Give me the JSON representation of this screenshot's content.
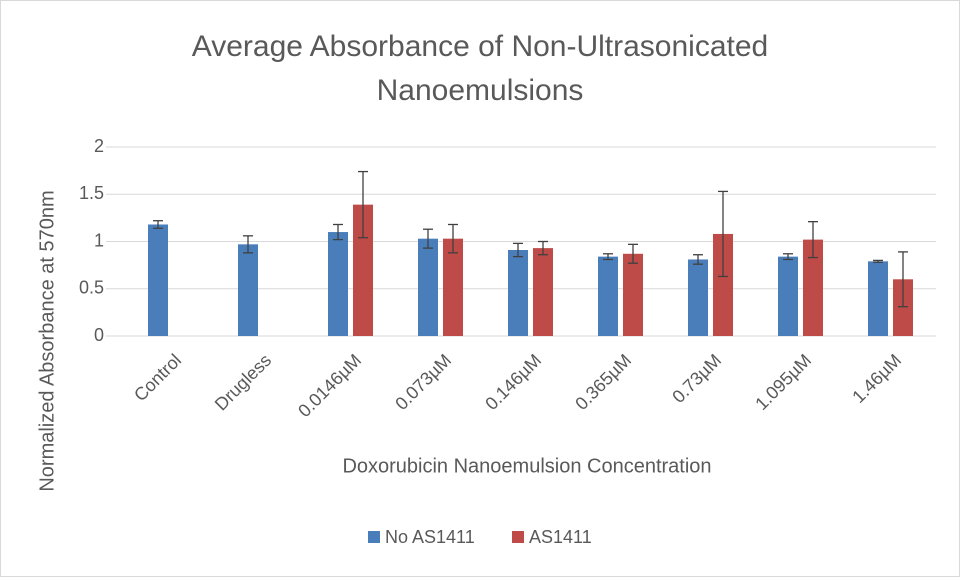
{
  "chart_data": {
    "type": "bar",
    "title": [
      "Average Absorbance of Non-Ultrasonicated",
      "Nanoemulsions"
    ],
    "xlabel": "Doxorubicin Nanoemulsion Concentration",
    "ylabel": "Normalized Absorbance at 570nm",
    "categories": [
      "Control",
      "Drugless",
      "0.0146µM",
      "0.073µM",
      "0.146µM",
      "0.365µM",
      "0.73µM",
      "1.095µM",
      "1.46µM"
    ],
    "series": [
      {
        "name": "No AS1411",
        "color": "#4a7ebb",
        "values": [
          1.18,
          0.97,
          1.1,
          1.03,
          0.91,
          0.84,
          0.81,
          0.84,
          0.79
        ],
        "errors": [
          0.04,
          0.09,
          0.08,
          0.1,
          0.07,
          0.03,
          0.05,
          0.03,
          0.01
        ]
      },
      {
        "name": "AS1411",
        "color": "#be4b48",
        "values": [
          null,
          null,
          1.39,
          1.03,
          0.93,
          0.87,
          1.08,
          1.02,
          0.6
        ],
        "errors": [
          null,
          null,
          0.35,
          0.15,
          0.07,
          0.1,
          0.45,
          0.19,
          0.29
        ]
      }
    ],
    "ylim": [
      0,
      2
    ],
    "yticks": [
      0,
      0.5,
      1,
      1.5,
      2
    ],
    "grid": true,
    "legend": "bottom"
  }
}
